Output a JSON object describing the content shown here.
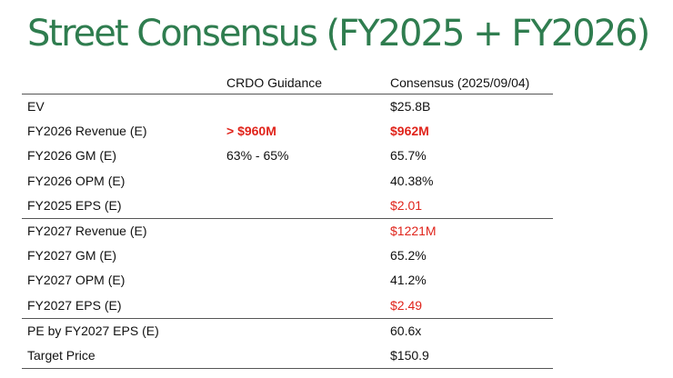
{
  "title": "Street Consensus (FY2025 + FY2026)",
  "colors": {
    "title": "#2f7d4f",
    "highlight": "#e0241b"
  },
  "header": {
    "metric": "",
    "guidance": "CRDO Guidance",
    "consensus": "Consensus (2025/09/04)"
  },
  "rows": [
    {
      "metric": "EV",
      "guidance": "",
      "consensus": "$25.8B"
    },
    {
      "metric": "FY2026 Revenue (E)",
      "guidance": "> $960M",
      "consensus": "$962M"
    },
    {
      "metric": "FY2026 GM (E)",
      "guidance": "63% - 65%",
      "consensus": "65.7%"
    },
    {
      "metric": "FY2026 OPM (E)",
      "guidance": "",
      "consensus": "40.38%"
    },
    {
      "metric": "FY2025 EPS (E)",
      "guidance": "",
      "consensus": "$2.01"
    },
    {
      "metric": "FY2027 Revenue (E)",
      "guidance": "",
      "consensus": "$1221M"
    },
    {
      "metric": "FY2027 GM (E)",
      "guidance": "",
      "consensus": "65.2%"
    },
    {
      "metric": "FY2027 OPM (E)",
      "guidance": "",
      "consensus": "41.2%"
    },
    {
      "metric": "FY2027 EPS (E)",
      "guidance": "",
      "consensus": "$2.49"
    },
    {
      "metric": "PE by FY2027 EPS (E)",
      "guidance": "",
      "consensus": "60.6x"
    },
    {
      "metric": "Target Price",
      "guidance": "",
      "consensus": "$150.9"
    }
  ]
}
